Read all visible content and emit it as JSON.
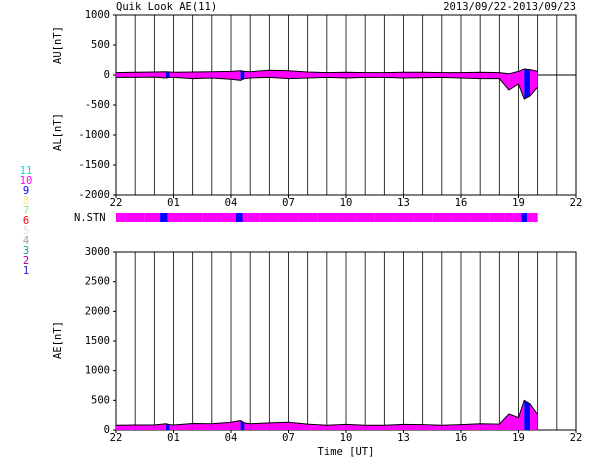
{
  "chart_data": {
    "type": "quicklook",
    "title": "Quik Look AE(11)",
    "date_range": "2013/09/22-2013/09/23",
    "xlabel": "Time [UT]",
    "x": [
      0,
      1,
      2,
      2.6,
      2.8,
      3,
      4,
      5,
      6,
      6.5,
      6.7,
      7,
      8,
      9,
      10,
      11,
      12,
      13,
      14,
      15,
      16,
      17,
      18,
      19,
      20,
      20.5,
      21,
      21.3,
      21.6,
      22
    ],
    "xlim": [
      0,
      24
    ],
    "xticks": [
      {
        "value": 0,
        "label": "22"
      },
      {
        "value": 3,
        "label": "01"
      },
      {
        "value": 6,
        "label": "04"
      },
      {
        "value": 9,
        "label": "07"
      },
      {
        "value": 12,
        "label": "10"
      },
      {
        "value": 15,
        "label": "13"
      },
      {
        "value": 18,
        "label": "16"
      },
      {
        "value": 21,
        "label": "19"
      },
      {
        "value": 24,
        "label": "22"
      }
    ],
    "grid_step": 1,
    "ylim": [
      -2000,
      1000
    ],
    "yticks": [
      -2000,
      -1500,
      -1000,
      -500,
      0,
      500,
      1000
    ],
    "y2lim": [
      0,
      3000
    ],
    "y2ticks": [
      0,
      500,
      1000,
      1500,
      2000,
      2500,
      3000
    ],
    "series": [
      {
        "name": "AU[nT]",
        "color": "#000000",
        "values": [
          40,
          45,
          50,
          55,
          50,
          45,
          50,
          55,
          60,
          70,
          60,
          55,
          80,
          70,
          50,
          40,
          45,
          40,
          40,
          45,
          45,
          40,
          40,
          45,
          40,
          20,
          60,
          100,
          90,
          60
        ]
      },
      {
        "name": "AL[nT]",
        "color": "#000000",
        "values": [
          -40,
          -40,
          -35,
          -50,
          -40,
          -40,
          -60,
          -50,
          -70,
          -90,
          -60,
          -50,
          -40,
          -60,
          -50,
          -40,
          -50,
          -40,
          -40,
          -50,
          -45,
          -40,
          -50,
          -60,
          -60,
          -250,
          -150,
          -400,
          -350,
          -200
        ]
      },
      {
        "name": "AE[nT]",
        "color": "#000000",
        "axis": "y2",
        "values": [
          80,
          85,
          85,
          105,
          90,
          85,
          110,
          105,
          130,
          160,
          120,
          105,
          120,
          130,
          100,
          80,
          95,
          80,
          80,
          95,
          90,
          80,
          90,
          105,
          100,
          270,
          210,
          500,
          440,
          260
        ]
      }
    ],
    "stations": {
      "name": "N.STN",
      "values": [
        10,
        10,
        10,
        9,
        10,
        10,
        10,
        10,
        10,
        9,
        10,
        10,
        10,
        10,
        10,
        10,
        10,
        10,
        10,
        10,
        10,
        10,
        10,
        10,
        10,
        10,
        10,
        9,
        10,
        10
      ]
    },
    "station_legend": {
      "values": [
        11,
        10,
        9,
        8,
        7,
        6,
        5,
        4,
        3,
        2,
        1
      ],
      "colors": [
        "#00e0e0",
        "#ff00ff",
        "#0000ff",
        "#f0f080",
        "#80f080",
        "#ff0000",
        "#e0e0e0",
        "#a0a0a0",
        "#00a0a0",
        "#a000a0",
        "#2020c0"
      ]
    }
  }
}
